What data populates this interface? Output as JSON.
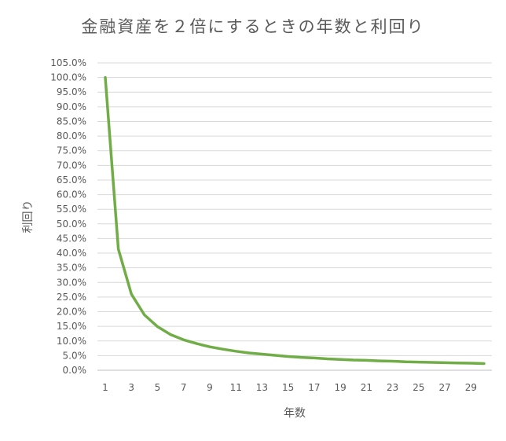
{
  "chart_data": {
    "type": "line",
    "title": "金融資産を２倍にするときの年数と利回り",
    "xlabel": "年数",
    "ylabel": "利回り",
    "x": [
      1,
      2,
      3,
      4,
      5,
      6,
      7,
      8,
      9,
      10,
      11,
      12,
      13,
      14,
      15,
      16,
      17,
      18,
      19,
      20,
      21,
      22,
      23,
      24,
      25,
      26,
      27,
      28,
      29,
      30
    ],
    "x_tick_labels": [
      "1",
      "3",
      "5",
      "7",
      "9",
      "11",
      "13",
      "15",
      "17",
      "19",
      "21",
      "23",
      "25",
      "27",
      "29"
    ],
    "y_tick_labels": [
      "0.0%",
      "5.0%",
      "10.0%",
      "15.0%",
      "20.0%",
      "25.0%",
      "30.0%",
      "35.0%",
      "40.0%",
      "45.0%",
      "50.0%",
      "55.0%",
      "60.0%",
      "65.0%",
      "70.0%",
      "75.0%",
      "80.0%",
      "85.0%",
      "90.0%",
      "95.0%",
      "100.0%",
      "105.0%"
    ],
    "ylim": [
      0,
      105
    ],
    "y_unit": "%",
    "grid": true,
    "series": [
      {
        "color": "#70ad47",
        "values": [
          100.0,
          41.4,
          26.0,
          18.9,
          14.9,
          12.2,
          10.4,
          9.1,
          8.0,
          7.2,
          6.5,
          5.9,
          5.5,
          5.1,
          4.7,
          4.4,
          4.2,
          3.9,
          3.7,
          3.5,
          3.4,
          3.2,
          3.1,
          2.9,
          2.8,
          2.7,
          2.6,
          2.5,
          2.4,
          2.3
        ]
      }
    ]
  }
}
